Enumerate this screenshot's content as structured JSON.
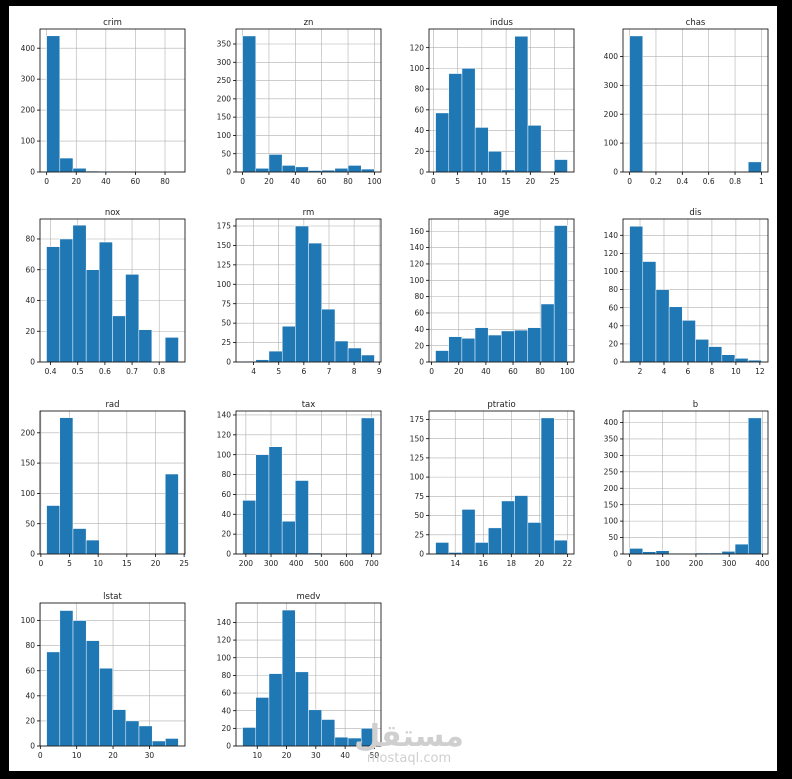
{
  "page": {
    "background": "#000000",
    "panel_background": "#ffffff"
  },
  "style": {
    "bar_color": "#1f77b4",
    "bar_edge": "#ffffff",
    "grid_color": "#b0b0b0",
    "text_color": "#222222"
  },
  "watermark": {
    "arabic": "مستقل",
    "latin": "mostaql.com"
  },
  "chart_data": [
    {
      "type": "bar",
      "title": "crim",
      "grid": true,
      "bins": [
        [
          0,
          8.9,
          440
        ],
        [
          8.9,
          17.8,
          45
        ],
        [
          17.8,
          26.7,
          12
        ],
        [
          26.7,
          35.6,
          3
        ],
        [
          35.6,
          44.5,
          2
        ],
        [
          44.5,
          53.4,
          2
        ],
        [
          53.4,
          62.3,
          0
        ],
        [
          62.3,
          71.2,
          1
        ],
        [
          71.2,
          80.1,
          1
        ],
        [
          80.1,
          89,
          1
        ]
      ],
      "xlim": [
        -4.5,
        93.5
      ],
      "ylim": [
        0,
        462
      ],
      "xticks": [
        0,
        20,
        40,
        60,
        80
      ],
      "yticks": [
        0,
        100,
        200,
        300,
        400
      ]
    },
    {
      "type": "bar",
      "title": "zn",
      "grid": true,
      "bins": [
        [
          0,
          10,
          372
        ],
        [
          10,
          20,
          10
        ],
        [
          20,
          30,
          48
        ],
        [
          30,
          40,
          18
        ],
        [
          40,
          50,
          14
        ],
        [
          50,
          60,
          4
        ],
        [
          60,
          70,
          5
        ],
        [
          70,
          80,
          10
        ],
        [
          80,
          90,
          18
        ],
        [
          90,
          100,
          8
        ]
      ],
      "xlim": [
        -5,
        105
      ],
      "ylim": [
        0,
        391
      ],
      "xticks": [
        0,
        20,
        40,
        60,
        80,
        100
      ],
      "yticks": [
        0,
        50,
        100,
        150,
        200,
        250,
        300,
        350
      ]
    },
    {
      "type": "bar",
      "title": "indus",
      "grid": true,
      "bins": [
        [
          0.46,
          3.18,
          57
        ],
        [
          3.18,
          5.9,
          95
        ],
        [
          5.9,
          8.62,
          100
        ],
        [
          8.62,
          11.34,
          43
        ],
        [
          11.34,
          14.06,
          20
        ],
        [
          14.06,
          16.78,
          2
        ],
        [
          16.78,
          19.5,
          131
        ],
        [
          19.5,
          22.22,
          45
        ],
        [
          22.22,
          24.94,
          0
        ],
        [
          24.94,
          27.66,
          12
        ]
      ],
      "xlim": [
        -0.9,
        29
      ],
      "ylim": [
        0,
        138
      ],
      "xticks": [
        0,
        5,
        10,
        15,
        20,
        25
      ],
      "yticks": [
        0,
        20,
        40,
        60,
        80,
        100,
        120
      ]
    },
    {
      "type": "bar",
      "title": "chas",
      "grid": true,
      "bins": [
        [
          0,
          0.1,
          471
        ],
        [
          0.1,
          0.2,
          0
        ],
        [
          0.2,
          0.3,
          0
        ],
        [
          0.3,
          0.4,
          0
        ],
        [
          0.4,
          0.5,
          0
        ],
        [
          0.5,
          0.6,
          0
        ],
        [
          0.6,
          0.7,
          0
        ],
        [
          0.7,
          0.8,
          0
        ],
        [
          0.8,
          0.9,
          0
        ],
        [
          0.9,
          1.0,
          35
        ]
      ],
      "xlim": [
        -0.05,
        1.05
      ],
      "ylim": [
        0,
        495
      ],
      "xticks": [
        0.0,
        0.2,
        0.4,
        0.6,
        0.8,
        1.0
      ],
      "yticks": [
        0,
        100,
        200,
        300,
        400
      ]
    },
    {
      "type": "bar",
      "title": "nox",
      "grid": true,
      "bins": [
        [
          0.385,
          0.434,
          75
        ],
        [
          0.434,
          0.482,
          80
        ],
        [
          0.482,
          0.531,
          89
        ],
        [
          0.531,
          0.579,
          60
        ],
        [
          0.579,
          0.628,
          78
        ],
        [
          0.628,
          0.676,
          30
        ],
        [
          0.676,
          0.725,
          57
        ],
        [
          0.725,
          0.773,
          21
        ],
        [
          0.773,
          0.822,
          0
        ],
        [
          0.822,
          0.871,
          16
        ]
      ],
      "xlim": [
        0.361,
        0.895
      ],
      "ylim": [
        0,
        93
      ],
      "xticks": [
        0.4,
        0.5,
        0.6,
        0.7,
        0.8
      ],
      "yticks": [
        0,
        20,
        40,
        60,
        80
      ]
    },
    {
      "type": "bar",
      "title": "rm",
      "grid": true,
      "bins": [
        [
          3.56,
          4.09,
          1
        ],
        [
          4.09,
          4.61,
          3
        ],
        [
          4.61,
          5.14,
          14
        ],
        [
          5.14,
          5.66,
          46
        ],
        [
          5.66,
          6.19,
          175
        ],
        [
          6.19,
          6.71,
          153
        ],
        [
          6.71,
          7.24,
          68
        ],
        [
          7.24,
          7.76,
          27
        ],
        [
          7.76,
          8.29,
          18
        ],
        [
          8.29,
          8.81,
          9
        ]
      ],
      "xlim": [
        3.3,
        9.07
      ],
      "ylim": [
        0,
        184
      ],
      "xticks": [
        4,
        5,
        6,
        7,
        8,
        9
      ],
      "yticks": [
        0,
        25,
        50,
        75,
        100,
        125,
        150,
        175
      ]
    },
    {
      "type": "bar",
      "title": "age",
      "grid": true,
      "bins": [
        [
          2.9,
          12.6,
          14
        ],
        [
          12.6,
          22.3,
          31
        ],
        [
          22.3,
          32.0,
          29
        ],
        [
          32.0,
          41.7,
          42
        ],
        [
          41.7,
          51.4,
          33
        ],
        [
          51.4,
          61.1,
          38
        ],
        [
          61.1,
          70.8,
          39
        ],
        [
          70.8,
          80.6,
          42
        ],
        [
          80.6,
          90.3,
          71
        ],
        [
          90.3,
          100,
          167
        ]
      ],
      "xlim": [
        -1.9,
        104.9
      ],
      "ylim": [
        0,
        175
      ],
      "xticks": [
        0,
        20,
        40,
        60,
        80,
        100
      ],
      "yticks": [
        0,
        20,
        40,
        60,
        80,
        100,
        120,
        140,
        160
      ]
    },
    {
      "type": "bar",
      "title": "dis",
      "grid": true,
      "bins": [
        [
          1.13,
          2.23,
          150
        ],
        [
          2.23,
          3.33,
          111
        ],
        [
          3.33,
          4.43,
          80
        ],
        [
          4.43,
          5.53,
          61
        ],
        [
          5.53,
          6.63,
          46
        ],
        [
          6.63,
          7.73,
          25
        ],
        [
          7.73,
          8.83,
          17
        ],
        [
          8.83,
          9.92,
          8
        ],
        [
          9.92,
          11.02,
          4
        ],
        [
          11.02,
          12.13,
          2
        ]
      ],
      "xlim": [
        0.58,
        12.68
      ],
      "ylim": [
        0,
        158
      ],
      "xticks": [
        2,
        4,
        6,
        8,
        10,
        12
      ],
      "yticks": [
        0,
        20,
        40,
        60,
        80,
        100,
        120,
        140
      ]
    },
    {
      "type": "bar",
      "title": "rad",
      "grid": true,
      "bins": [
        [
          1,
          3.3,
          80
        ],
        [
          3.3,
          5.6,
          225
        ],
        [
          5.6,
          7.9,
          42
        ],
        [
          7.9,
          10.2,
          23
        ],
        [
          10.2,
          12.5,
          0
        ],
        [
          12.5,
          14.8,
          0
        ],
        [
          14.8,
          17.1,
          0
        ],
        [
          17.1,
          19.4,
          0
        ],
        [
          19.4,
          21.7,
          0
        ],
        [
          21.7,
          24,
          132
        ]
      ],
      "xlim": [
        -0.15,
        25.15
      ],
      "ylim": [
        0,
        236
      ],
      "xticks": [
        0,
        5,
        10,
        15,
        20,
        25
      ],
      "yticks": [
        0,
        50,
        100,
        150,
        200
      ]
    },
    {
      "type": "bar",
      "title": "tax",
      "grid": true,
      "bins": [
        [
          187,
          239.4,
          54
        ],
        [
          239.4,
          291.8,
          100
        ],
        [
          291.8,
          344.2,
          108
        ],
        [
          344.2,
          396.6,
          33
        ],
        [
          396.6,
          449,
          74
        ],
        [
          449,
          501.4,
          1
        ],
        [
          501.4,
          553.8,
          0
        ],
        [
          553.8,
          606.2,
          0
        ],
        [
          606.2,
          658.6,
          0
        ],
        [
          658.6,
          711,
          137
        ]
      ],
      "xlim": [
        160.8,
        737.2
      ],
      "ylim": [
        0,
        144
      ],
      "xticks": [
        200,
        300,
        400,
        500,
        600,
        700
      ],
      "yticks": [
        0,
        20,
        40,
        60,
        80,
        100,
        120,
        140
      ]
    },
    {
      "type": "bar",
      "title": "ptratio",
      "grid": true,
      "bins": [
        [
          12.6,
          13.54,
          15
        ],
        [
          13.54,
          14.48,
          2
        ],
        [
          14.48,
          15.42,
          58
        ],
        [
          15.42,
          16.36,
          15
        ],
        [
          16.36,
          17.3,
          34
        ],
        [
          17.3,
          18.24,
          69
        ],
        [
          18.24,
          19.18,
          76
        ],
        [
          19.18,
          20.12,
          41
        ],
        [
          20.12,
          21.06,
          177
        ],
        [
          21.06,
          22,
          18
        ]
      ],
      "xlim": [
        12.13,
        22.47
      ],
      "ylim": [
        0,
        186
      ],
      "xticks": [
        14,
        16,
        18,
        20,
        22
      ],
      "yticks": [
        0,
        25,
        50,
        75,
        100,
        125,
        150,
        175
      ]
    },
    {
      "type": "bar",
      "title": "b",
      "grid": true,
      "bins": [
        [
          0.32,
          39.99,
          17
        ],
        [
          39.99,
          79.66,
          7
        ],
        [
          79.66,
          119.33,
          10
        ],
        [
          119.33,
          158.99,
          2
        ],
        [
          158.99,
          198.66,
          2
        ],
        [
          198.66,
          238.33,
          3
        ],
        [
          238.33,
          278,
          3
        ],
        [
          278,
          317.67,
          8
        ],
        [
          317.67,
          357.33,
          30
        ],
        [
          357.33,
          397,
          414
        ]
      ],
      "xlim": [
        -19.5,
        416.8
      ],
      "ylim": [
        0,
        435
      ],
      "xticks": [
        0,
        100,
        200,
        300,
        400
      ],
      "yticks": [
        0,
        50,
        100,
        150,
        200,
        250,
        300,
        350,
        400
      ]
    },
    {
      "type": "bar",
      "title": "lstat",
      "grid": true,
      "bins": [
        [
          1.73,
          5.36,
          75
        ],
        [
          5.36,
          8.99,
          108
        ],
        [
          8.99,
          12.62,
          100
        ],
        [
          12.62,
          16.25,
          84
        ],
        [
          16.25,
          19.88,
          62
        ],
        [
          19.88,
          23.51,
          29
        ],
        [
          23.51,
          27.14,
          20
        ],
        [
          27.14,
          30.77,
          16
        ],
        [
          30.77,
          34.4,
          4
        ],
        [
          34.4,
          37.97,
          6
        ]
      ],
      "xlim": [
        -0.09,
        39.79
      ],
      "ylim": [
        0,
        114
      ],
      "xticks": [
        0,
        10,
        20,
        30
      ],
      "yticks": [
        0,
        20,
        40,
        60,
        80,
        100
      ]
    },
    {
      "type": "bar",
      "title": "medv",
      "grid": true,
      "bins": [
        [
          5,
          9.5,
          21
        ],
        [
          9.5,
          14,
          55
        ],
        [
          14,
          18.5,
          82
        ],
        [
          18.5,
          23,
          154
        ],
        [
          23,
          27.5,
          84
        ],
        [
          27.5,
          32,
          41
        ],
        [
          32,
          36.5,
          30
        ],
        [
          36.5,
          41,
          10
        ],
        [
          41,
          45.5,
          9
        ],
        [
          45.5,
          50,
          20
        ]
      ],
      "xlim": [
        2.75,
        52.25
      ],
      "ylim": [
        0,
        162
      ],
      "xticks": [
        10,
        20,
        30,
        40,
        50
      ],
      "yticks": [
        0,
        20,
        40,
        60,
        80,
        100,
        120,
        140
      ]
    }
  ]
}
